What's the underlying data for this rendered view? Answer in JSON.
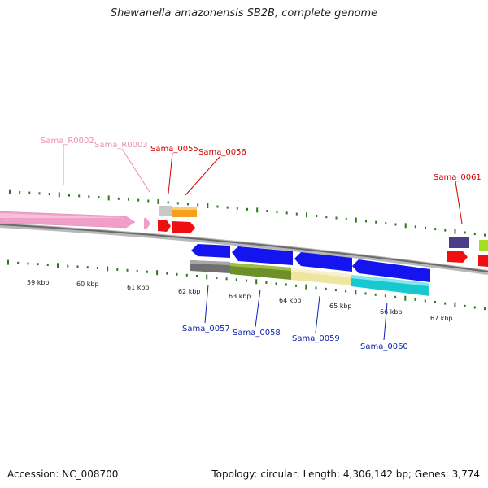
{
  "title": "Shewanella amazonensis SB2B, complete genome",
  "footer": {
    "accession": "Accession: NC_008700",
    "topology": "Topology: circular; Length: 4,306,142 bp; Genes: 3,774"
  },
  "colors": {
    "backbone": "#8a8a8a",
    "tick": "#2a7a1a",
    "label_red": "#d40000",
    "label_pink": "#e890b4",
    "label_blue": "#1020b0"
  },
  "kbp_ticks": [
    "59 kbp",
    "60 kbp",
    "61 kbp",
    "62 kbp",
    "63 kbp",
    "64 kbp",
    "65 kbp",
    "66 kbp",
    "67 kbp"
  ],
  "features_top": [
    {
      "name": "Sama_R0002",
      "label_color": "#e890b4"
    },
    {
      "name": "Sama_R0003",
      "label_color": "#e890b4"
    },
    {
      "name": "Sama_0055",
      "label_color": "#d40000"
    },
    {
      "name": "Sama_0056",
      "label_color": "#d40000"
    },
    {
      "name": "Sama_0061",
      "label_color": "#d40000"
    }
  ],
  "features_bottom": [
    {
      "name": "Sama_0057",
      "label_color": "#1020b0"
    },
    {
      "name": "Sama_0058",
      "label_color": "#1020b0"
    },
    {
      "name": "Sama_0059",
      "label_color": "#1020b0"
    },
    {
      "name": "Sama_0060",
      "label_color": "#1020b0"
    }
  ]
}
